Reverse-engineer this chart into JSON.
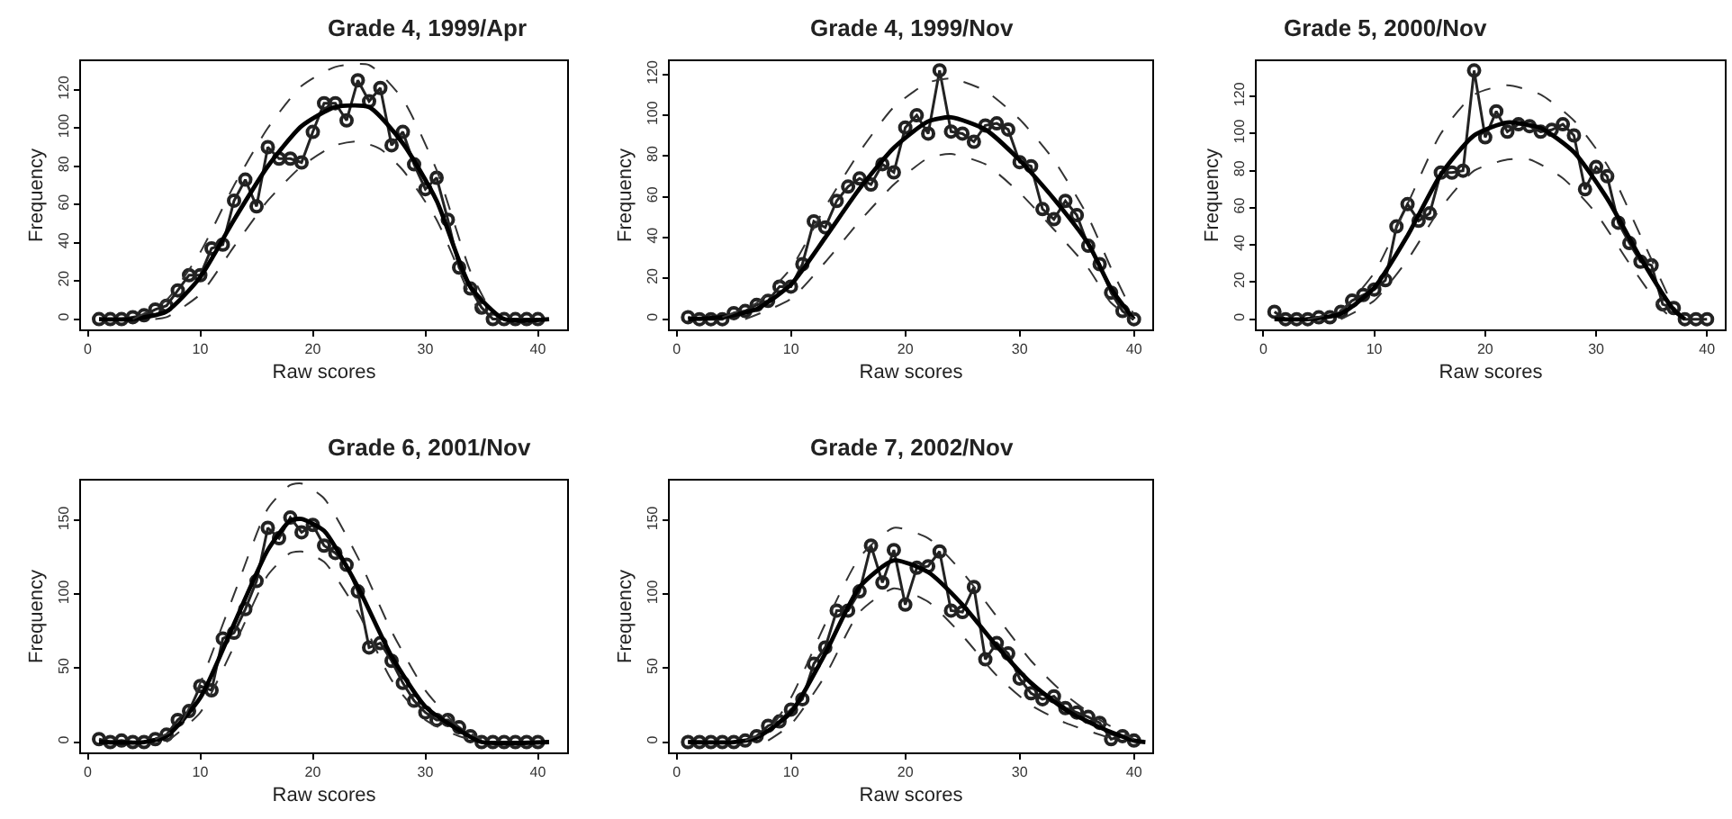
{
  "chart_data": [
    {
      "type": "line",
      "title": "Grade 4, 1999/Apr",
      "xlabel": "Raw scores",
      "ylabel": "Frequency",
      "xlim": [
        -0.6,
        42.6
      ],
      "xticks": [
        0,
        10,
        20,
        30,
        40
      ],
      "ylim": [
        -5.4,
        135
      ],
      "yticks": [
        0,
        20,
        40,
        60,
        80,
        100,
        120
      ],
      "series": [
        {
          "color": "#222222",
          "marker": "circle",
          "line_style": "solid",
          "x": [
            1,
            2,
            3,
            4,
            5,
            6,
            7,
            8,
            9,
            10,
            11,
            12,
            13,
            14,
            15,
            16,
            17,
            18,
            19,
            20,
            21,
            22,
            23,
            24,
            25,
            26,
            27,
            28,
            29,
            30,
            31,
            32,
            33,
            34,
            35,
            36,
            37,
            38,
            39,
            40
          ],
          "values": [
            0,
            0,
            0,
            1,
            2,
            5,
            7,
            15,
            23,
            23,
            37,
            39,
            62,
            73,
            59,
            90,
            84,
            84,
            82,
            98,
            113,
            113,
            104,
            125,
            114,
            121,
            91,
            98,
            81,
            68,
            74,
            52,
            27,
            16,
            6,
            0,
            0,
            0,
            0,
            0
          ]
        },
        {
          "color": "#000000",
          "marker": "none",
          "line_style": "solid",
          "x": [
            1,
            4,
            7,
            10,
            13,
            16,
            19,
            22,
            25,
            28,
            31,
            34,
            37,
            41
          ],
          "values": [
            0,
            0,
            4,
            22,
            52,
            80,
            101,
            111,
            111,
            92,
            62,
            17,
            0,
            0
          ]
        },
        {
          "color": "#333333",
          "marker": "none",
          "line_style": "dashed",
          "x": [
            4,
            7,
            10,
            13,
            16,
            19,
            22,
            25,
            28,
            31,
            34,
            36
          ],
          "values": [
            0,
            10,
            35,
            70,
            100,
            122,
            132,
            133,
            115,
            78,
            25,
            2
          ]
        },
        {
          "color": "#333333",
          "marker": "none",
          "line_style": "dashed",
          "x": [
            6,
            7,
            10,
            13,
            16,
            19,
            22,
            24,
            26,
            28,
            31,
            34,
            35
          ],
          "values": [
            0,
            1,
            13,
            38,
            62,
            80,
            91,
            93,
            89,
            78,
            52,
            12,
            3
          ]
        }
      ]
    },
    {
      "type": "line",
      "title": "Grade 4, 1999/Nov",
      "xlabel": "Raw scores",
      "ylabel": "Frequency",
      "xlim": [
        -0.6,
        41.6
      ],
      "xticks": [
        0,
        10,
        20,
        30,
        40
      ],
      "ylim": [
        -5,
        126.5
      ],
      "yticks": [
        0,
        20,
        40,
        60,
        80,
        100,
        120
      ],
      "series": [
        {
          "color": "#222222",
          "marker": "circle",
          "line_style": "solid",
          "x": [
            1,
            2,
            3,
            4,
            5,
            6,
            7,
            8,
            9,
            10,
            11,
            12,
            13,
            14,
            15,
            16,
            17,
            18,
            19,
            20,
            21,
            22,
            23,
            24,
            25,
            26,
            27,
            28,
            29,
            30,
            31,
            32,
            33,
            34,
            35,
            36,
            37,
            38,
            39,
            40
          ],
          "values": [
            1,
            0,
            0,
            0,
            3,
            4,
            7,
            9,
            16,
            16,
            27,
            48,
            45,
            58,
            65,
            69,
            66,
            76,
            72,
            94,
            100,
            91,
            122,
            92,
            91,
            87,
            95,
            96,
            93,
            77,
            75,
            54,
            49,
            58,
            51,
            36,
            27,
            13,
            4,
            0
          ]
        },
        {
          "color": "#000000",
          "marker": "none",
          "line_style": "solid",
          "x": [
            1,
            4,
            7,
            10,
            13,
            16,
            19,
            22,
            24,
            27,
            30,
            33,
            36,
            38,
            40
          ],
          "values": [
            0,
            1,
            5,
            17,
            40,
            64,
            84,
            97,
            99,
            93,
            78,
            59,
            37,
            15,
            0
          ]
        },
        {
          "color": "#333333",
          "marker": "none",
          "line_style": "dashed",
          "x": [
            4,
            7,
            10,
            13,
            16,
            19,
            22,
            24,
            27,
            30,
            33,
            36,
            38,
            40
          ],
          "values": [
            1,
            8,
            25,
            55,
            82,
            104,
            116,
            118,
            112,
            98,
            78,
            50,
            25,
            2
          ]
        },
        {
          "color": "#333333",
          "marker": "none",
          "line_style": "dashed",
          "x": [
            6,
            10,
            13,
            16,
            19,
            22,
            24,
            27,
            30,
            33,
            36,
            38,
            40
          ],
          "values": [
            0,
            10,
            28,
            48,
            66,
            79,
            81,
            76,
            62,
            44,
            25,
            8,
            0
          ]
        }
      ]
    },
    {
      "type": "line",
      "title": "Grade 5, 2000/Nov",
      "xlabel": "Raw scores",
      "ylabel": "Frequency",
      "xlim": [
        -0.6,
        41.6
      ],
      "xticks": [
        0,
        10,
        20,
        30,
        40
      ],
      "ylim": [
        -5.5,
        139
      ],
      "yticks": [
        0,
        20,
        40,
        60,
        80,
        100,
        120
      ],
      "series": [
        {
          "color": "#222222",
          "marker": "circle",
          "line_style": "solid",
          "x": [
            1,
            2,
            3,
            4,
            5,
            6,
            7,
            8,
            9,
            10,
            11,
            12,
            13,
            14,
            15,
            16,
            17,
            18,
            19,
            20,
            21,
            22,
            23,
            24,
            25,
            26,
            27,
            28,
            29,
            30,
            31,
            32,
            33,
            34,
            35,
            36,
            37,
            38,
            39,
            40
          ],
          "values": [
            4,
            0,
            0,
            0,
            1,
            1,
            4,
            10,
            13,
            16,
            21,
            50,
            62,
            53,
            57,
            79,
            79,
            80,
            134,
            98,
            112,
            101,
            105,
            104,
            101,
            102,
            105,
            99,
            70,
            82,
            77,
            52,
            41,
            31,
            29,
            8,
            6,
            0,
            0,
            0
          ]
        },
        {
          "color": "#000000",
          "marker": "none",
          "line_style": "solid",
          "x": [
            1,
            4,
            7,
            10,
            13,
            16,
            19,
            22,
            25,
            28,
            31,
            34,
            37,
            38
          ],
          "values": [
            0,
            0,
            3,
            17,
            45,
            78,
            99,
            106,
            103,
            90,
            65,
            33,
            5,
            0
          ]
        },
        {
          "color": "#333333",
          "marker": "none",
          "line_style": "dashed",
          "x": [
            4,
            7,
            10,
            13,
            16,
            19,
            22,
            25,
            28,
            31,
            34,
            37
          ],
          "values": [
            0,
            5,
            25,
            62,
            100,
            121,
            126,
            121,
            107,
            83,
            45,
            6
          ]
        },
        {
          "color": "#333333",
          "marker": "none",
          "line_style": "dashed",
          "x": [
            7,
            10,
            13,
            16,
            19,
            22,
            24,
            27,
            30,
            33,
            36,
            37
          ],
          "values": [
            0,
            10,
            32,
            60,
            80,
            86,
            86,
            76,
            57,
            30,
            5,
            0
          ]
        }
      ]
    },
    {
      "type": "line",
      "title": "Grade 6, 2001/Nov",
      "xlabel": "Raw scores",
      "ylabel": "Frequency",
      "xlim": [
        -0.6,
        42.6
      ],
      "xticks": [
        0,
        10,
        20,
        30,
        40
      ],
      "ylim": [
        -7,
        177
      ],
      "yticks": [
        0,
        50,
        100,
        150
      ],
      "series": [
        {
          "color": "#222222",
          "marker": "circle",
          "line_style": "solid",
          "x": [
            1,
            2,
            3,
            4,
            5,
            6,
            7,
            8,
            9,
            10,
            11,
            12,
            13,
            14,
            15,
            16,
            17,
            18,
            19,
            20,
            21,
            22,
            23,
            24,
            25,
            26,
            27,
            28,
            29,
            30,
            31,
            32,
            33,
            34,
            35,
            36,
            37,
            38,
            39,
            40
          ],
          "values": [
            2,
            0,
            1,
            0,
            0,
            2,
            5,
            15,
            21,
            38,
            35,
            70,
            74,
            90,
            109,
            145,
            138,
            152,
            142,
            147,
            133,
            128,
            120,
            102,
            64,
            67,
            55,
            40,
            28,
            20,
            15,
            15,
            10,
            4,
            0,
            0,
            0,
            0,
            0,
            0
          ]
        },
        {
          "color": "#000000",
          "marker": "none",
          "line_style": "solid",
          "x": [
            1,
            5,
            7,
            10,
            13,
            16,
            18,
            19,
            21,
            24,
            27,
            30,
            33,
            35,
            41
          ],
          "values": [
            0,
            0,
            4,
            30,
            80,
            130,
            150,
            151,
            143,
            105,
            58,
            24,
            8,
            0,
            0
          ]
        },
        {
          "color": "#333333",
          "marker": "none",
          "line_style": "dashed",
          "x": [
            6,
            8,
            10,
            13,
            16,
            18,
            19,
            21,
            24,
            27,
            30,
            33,
            35
          ],
          "values": [
            2,
            10,
            40,
            100,
            158,
            174,
            175,
            165,
            125,
            75,
            35,
            10,
            2
          ]
        },
        {
          "color": "#333333",
          "marker": "none",
          "line_style": "dashed",
          "x": [
            7,
            10,
            13,
            16,
            18,
            19,
            21,
            24,
            27,
            30,
            33,
            35
          ],
          "values": [
            0,
            20,
            65,
            113,
            128,
            129,
            122,
            88,
            42,
            15,
            4,
            0
          ]
        }
      ]
    },
    {
      "type": "line",
      "title": "Grade 7, 2002/Nov",
      "xlabel": "Raw scores",
      "ylabel": "Frequency",
      "xlim": [
        -0.6,
        41.6
      ],
      "xticks": [
        0,
        10,
        20,
        30,
        40
      ],
      "ylim": [
        -7,
        177
      ],
      "yticks": [
        0,
        50,
        100,
        150
      ],
      "series": [
        {
          "color": "#222222",
          "marker": "circle",
          "line_style": "solid",
          "x": [
            1,
            2,
            3,
            4,
            5,
            6,
            7,
            8,
            9,
            10,
            11,
            12,
            13,
            14,
            15,
            16,
            17,
            18,
            19,
            20,
            21,
            22,
            23,
            24,
            25,
            26,
            27,
            28,
            29,
            30,
            31,
            32,
            33,
            34,
            35,
            36,
            37,
            38,
            39,
            40
          ],
          "values": [
            0,
            0,
            0,
            0,
            0,
            1,
            4,
            11,
            14,
            22,
            29,
            53,
            64,
            89,
            89,
            102,
            133,
            108,
            130,
            93,
            118,
            119,
            129,
            89,
            88,
            105,
            56,
            67,
            60,
            43,
            33,
            29,
            31,
            23,
            20,
            17,
            13,
            2,
            4,
            1
          ]
        },
        {
          "color": "#000000",
          "marker": "none",
          "line_style": "solid",
          "x": [
            1,
            5,
            7,
            10,
            13,
            16,
            19,
            22,
            25,
            28,
            31,
            34,
            37,
            40,
            41
          ],
          "values": [
            0,
            0,
            3,
            20,
            60,
            105,
            123,
            115,
            93,
            65,
            40,
            22,
            10,
            1,
            0
          ]
        },
        {
          "color": "#333333",
          "marker": "none",
          "line_style": "dashed",
          "x": [
            6,
            8,
            10,
            13,
            16,
            19,
            22,
            25,
            28,
            31,
            34,
            37,
            40
          ],
          "values": [
            1,
            8,
            30,
            80,
            125,
            145,
            138,
            115,
            85,
            55,
            32,
            15,
            2
          ]
        },
        {
          "color": "#333333",
          "marker": "none",
          "line_style": "dashed",
          "x": [
            8,
            10,
            13,
            16,
            19,
            22,
            25,
            28,
            31,
            34,
            37,
            39
          ],
          "values": [
            1,
            12,
            45,
            88,
            104,
            95,
            72,
            45,
            25,
            13,
            5,
            0
          ]
        }
      ]
    }
  ]
}
